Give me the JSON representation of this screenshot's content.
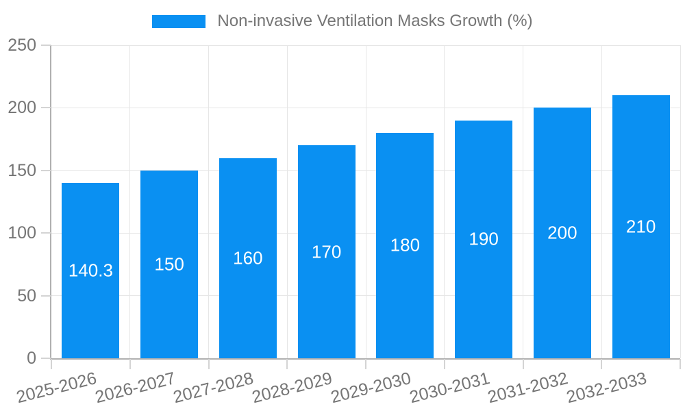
{
  "legend": {
    "label": "Non-invasive Ventilation Masks Growth (%)"
  },
  "chart_data": {
    "type": "bar",
    "title": "",
    "series_name": "Non-invasive Ventilation Masks Growth (%)",
    "categories": [
      "2025-2026",
      "2026-2027",
      "2027-2028",
      "2028-2029",
      "2029-2030",
      "2030-2031",
      "2031-2032",
      "2032-2033"
    ],
    "values": [
      140.3,
      150,
      160,
      170,
      180,
      190,
      200,
      210
    ],
    "value_labels": [
      "140.3",
      "150",
      "160",
      "170",
      "180",
      "190",
      "200",
      "210"
    ],
    "xlabel": "",
    "ylabel": "",
    "ylim": [
      0,
      250
    ],
    "yticks": [
      0,
      50,
      100,
      150,
      200,
      250
    ],
    "grid": true,
    "legend_position": "top-center",
    "x_tick_rotation_deg": -14,
    "colors": {
      "bar": "#0a90f2",
      "grid": "#e6e6e6",
      "axis": "#b0b0b0",
      "tick": "#d4d4d4",
      "tick_label": "#757575",
      "value_label": "#ffffff",
      "legend_text": "#757575"
    }
  }
}
